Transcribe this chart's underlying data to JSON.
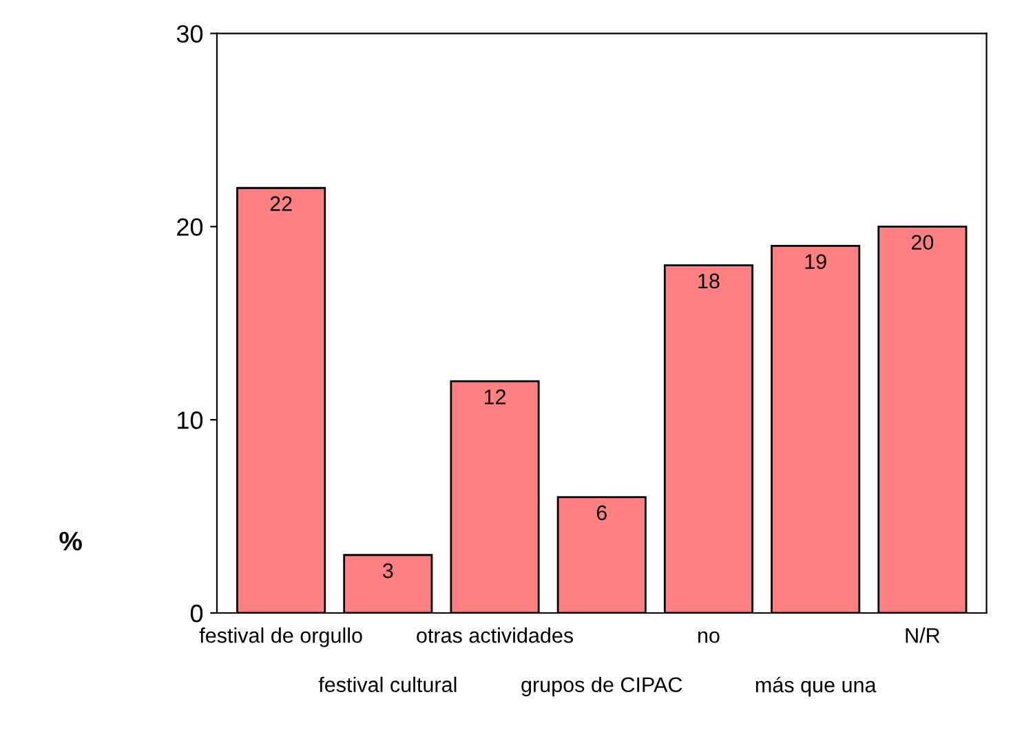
{
  "chart_data": {
    "type": "bar",
    "ylabel": "%",
    "categories": [
      "festival de orgullo",
      "festival cultural",
      "otras actividades",
      "grupos de CIPAC",
      "no",
      "más que una",
      "N/R"
    ],
    "values": [
      22,
      3,
      12,
      6,
      18,
      19,
      20
    ],
    "color": "#ff8080",
    "ylim": [
      0,
      30
    ],
    "yticks": [
      0,
      10,
      20,
      30
    ],
    "data_labels": true,
    "grid": false,
    "legend": false
  }
}
